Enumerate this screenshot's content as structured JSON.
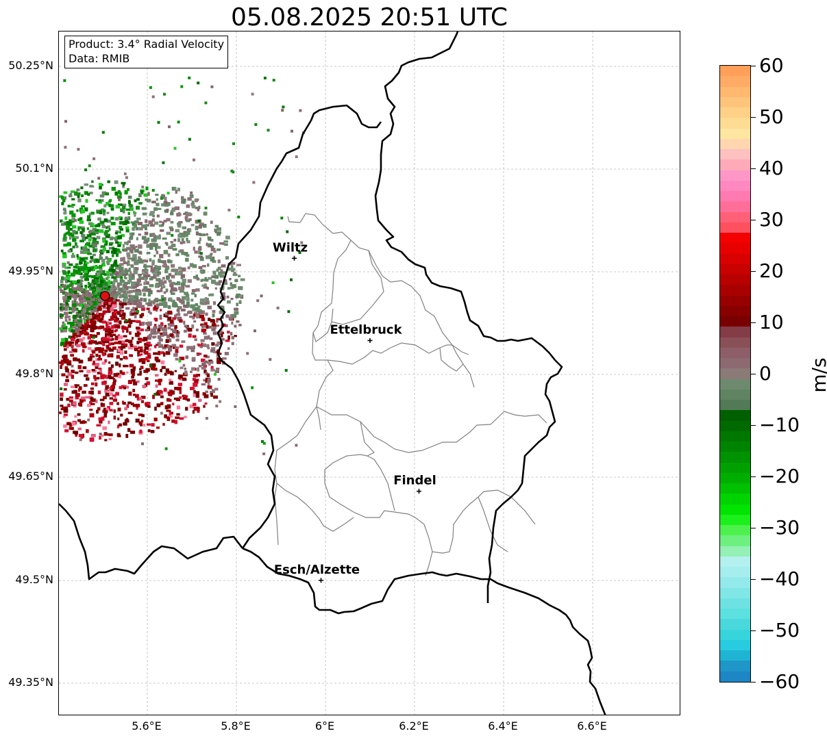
{
  "title": "05.08.2025 20:51 UTC",
  "info": {
    "product": "Product: 3.4° Radial Velocity",
    "data": "Data: RMIB"
  },
  "latitude_labels": [
    "50.25°N",
    "50.1°N",
    "49.95°N",
    "49.8°N",
    "49.65°N",
    "49.5°N",
    "49.35°N"
  ],
  "longitude_labels": [
    "5.6°E",
    "5.8°E",
    "6°E",
    "6.2°E",
    "6.4°E",
    "6.6°E"
  ],
  "cities": [
    {
      "name": "Wiltz",
      "lon": 5.93,
      "lat": 49.97
    },
    {
      "name": "Ettelbruck",
      "lon": 6.1,
      "lat": 49.85
    },
    {
      "name": "Findel",
      "lon": 6.21,
      "lat": 49.63
    },
    {
      "name": "Esch/Alzette",
      "lon": 5.99,
      "lat": 49.5
    }
  ],
  "radar_site": {
    "lon": 5.505,
    "lat": 49.915,
    "color": "#e01010"
  },
  "colorbar": {
    "unit": "m/s",
    "tick_labels": [
      "60",
      "50",
      "40",
      "30",
      "20",
      "10",
      "0",
      "−10",
      "−20",
      "−30",
      "−40",
      "−50",
      "−60"
    ],
    "colors_top_to_bottom": [
      "#ff9f5a",
      "#ffab66",
      "#ffb870",
      "#ffc47c",
      "#ffd088",
      "#ffdc94",
      "#ffe6a0",
      "#ffd6b0",
      "#ffc0c0",
      "#ffaab8",
      "#ff96c8",
      "#ff88c0",
      "#ff7ab0",
      "#ff6e98",
      "#ff6078",
      "#ff5060",
      "#f40000",
      "#e80000",
      "#d80000",
      "#c80000",
      "#b80000",
      "#a80000",
      "#980000",
      "#880000",
      "#780000",
      "#843c46",
      "#8a5058",
      "#8e5e68",
      "#8c6a70",
      "#8a7a78",
      "#6e8a6e",
      "#608462",
      "#537a56",
      "#006000",
      "#006a00",
      "#007800",
      "#008400",
      "#009200",
      "#00a000",
      "#00ae00",
      "#00c000",
      "#00d400",
      "#00e400",
      "#1cf01c",
      "#4ef04e",
      "#6ef080",
      "#94f0b4",
      "#b4f0f0",
      "#a6eeee",
      "#94eaea",
      "#80e6e6",
      "#6ee2e2",
      "#5ce0e0",
      "#4ad8dc",
      "#38d4dc",
      "#28cce0",
      "#20b4d4",
      "#1e96c8",
      "#1e86c4"
    ],
    "accent_colors": {
      "red": "#7a0000",
      "green": "#1a8a1a",
      "grey_red": "#8a6a70",
      "grey_green": "#668866"
    }
  }
}
